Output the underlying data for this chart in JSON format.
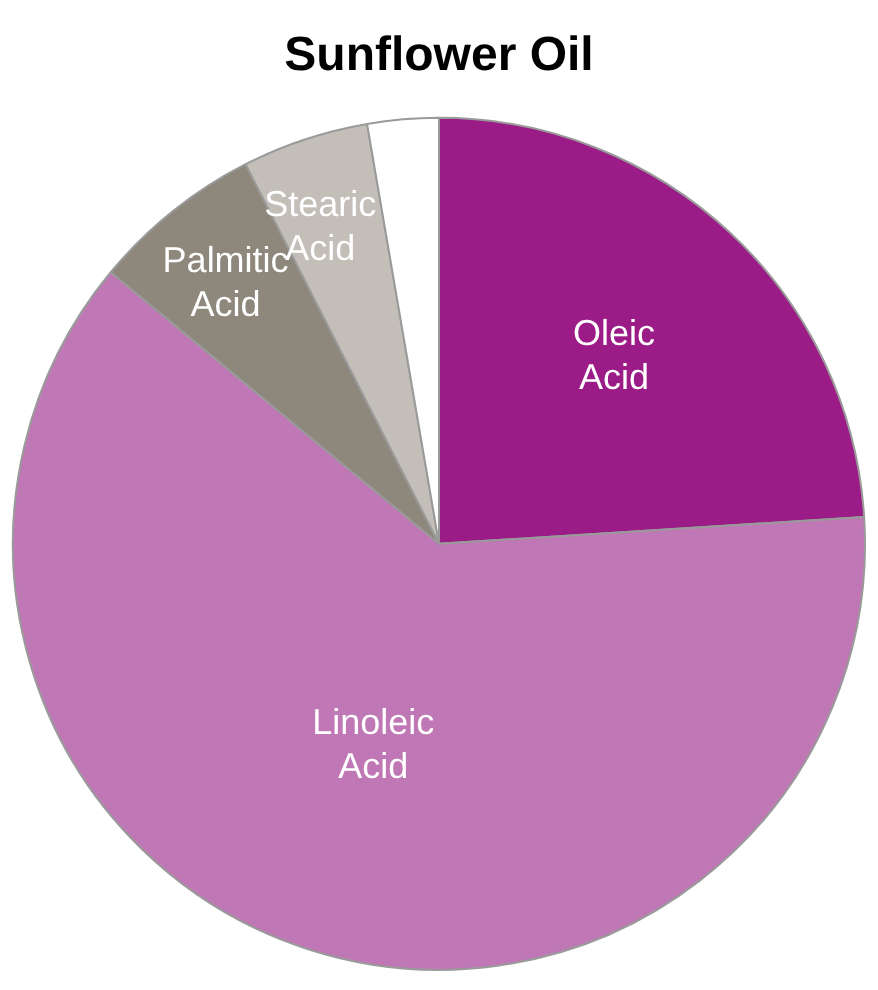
{
  "chart_data": {
    "type": "pie",
    "title": "Sunflower Oil",
    "categories": [
      "Oleic Acid",
      "Linoleic Acid",
      "Palmitic Acid",
      "Stearic Acid",
      null
    ],
    "values": [
      24,
      62,
      6.5,
      4.8,
      2.7
    ],
    "colors": [
      "#9b1b87",
      "#c077b5",
      "#8e877c",
      "#c3bfb8",
      "#ffffff"
    ],
    "legend": false
  }
}
